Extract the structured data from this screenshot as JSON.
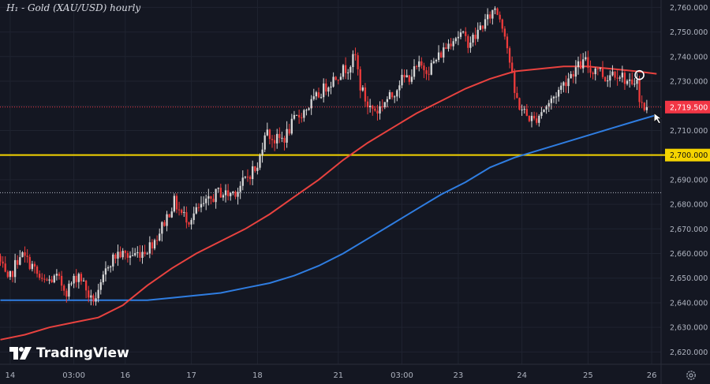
{
  "title": "H₁ - Gold (XAU/USD) hourly",
  "brand": {
    "name": "TradingView",
    "logo_icon": "tradingview-logo-icon"
  },
  "settings_icon": "gear-icon",
  "colors": {
    "background": "#141722",
    "up": "#d7d7d7",
    "down": "#ef3b3b",
    "ma_fast": "#e8423f",
    "ma_slow": "#2f7de1",
    "support": "#f5d400",
    "current_price_label": "#f23645"
  },
  "chart_data": {
    "type": "candlestick",
    "title": "H₁ - Gold (XAU/USD) hourly",
    "timeframe": "hourly",
    "ylim": [
      2615,
      2763
    ],
    "y_ticks": [
      2620,
      2630,
      2640,
      2650,
      2660,
      2670,
      2680,
      2690,
      2700,
      2710,
      2720,
      2730,
      2740,
      2750,
      2760
    ],
    "y_tick_labels": [
      "2,620.000",
      "2,630.000",
      "2,640.000",
      "2,650.000",
      "2,660.000",
      "2,670.000",
      "2,680.000",
      "2,690.000",
      "2,700.000",
      "2,710.000",
      "2,720.000",
      "2,730.000",
      "2,740.000",
      "2,750.000",
      "2,760.000"
    ],
    "x_ticks": [
      {
        "label": "14",
        "bar": 4
      },
      {
        "label": "03:00",
        "bar": 30
      },
      {
        "label": "16",
        "bar": 51
      },
      {
        "label": "17",
        "bar": 78
      },
      {
        "label": "18",
        "bar": 105
      },
      {
        "label": "21",
        "bar": 138
      },
      {
        "label": "03:00",
        "bar": 164
      },
      {
        "label": "23",
        "bar": 187
      },
      {
        "label": "24",
        "bar": 213
      },
      {
        "label": "25",
        "bar": 240
      },
      {
        "label": "26",
        "bar": 266
      }
    ],
    "bar_count": 270,
    "current_price": 2719.5,
    "current_price_label": "2,719.500",
    "support_level": 2700.0,
    "support_label": "2,700.000",
    "dotted_level": 2684.7,
    "grid": true,
    "anchors": [
      [
        0,
        2659
      ],
      [
        4,
        2648
      ],
      [
        9,
        2660
      ],
      [
        14,
        2655
      ],
      [
        18,
        2648
      ],
      [
        24,
        2650
      ],
      [
        28,
        2645
      ],
      [
        33,
        2652
      ],
      [
        38,
        2641
      ],
      [
        41,
        2643
      ],
      [
        45,
        2656
      ],
      [
        49,
        2660
      ],
      [
        53,
        2659
      ],
      [
        57,
        2660
      ],
      [
        61,
        2662
      ],
      [
        65,
        2667
      ],
      [
        69,
        2675
      ],
      [
        72,
        2681
      ],
      [
        75,
        2676
      ],
      [
        78,
        2674
      ],
      [
        82,
        2678
      ],
      [
        86,
        2681
      ],
      [
        90,
        2685
      ],
      [
        94,
        2684
      ],
      [
        98,
        2686
      ],
      [
        101,
        2690
      ],
      [
        104,
        2694
      ],
      [
        106,
        2694
      ],
      [
        109,
        2710
      ],
      [
        113,
        2706
      ],
      [
        117,
        2707
      ],
      [
        121,
        2714
      ],
      [
        125,
        2718
      ],
      [
        129,
        2722
      ],
      [
        134,
        2728
      ],
      [
        139,
        2733
      ],
      [
        143,
        2736
      ],
      [
        146,
        2740
      ],
      [
        148,
        2728
      ],
      [
        151,
        2720
      ],
      [
        155,
        2718
      ],
      [
        158,
        2722
      ],
      [
        161,
        2724
      ],
      [
        164,
        2730
      ],
      [
        168,
        2732
      ],
      [
        172,
        2736
      ],
      [
        176,
        2735
      ],
      [
        180,
        2740
      ],
      [
        183,
        2744
      ],
      [
        186,
        2748
      ],
      [
        189,
        2749
      ],
      [
        192,
        2746
      ],
      [
        195,
        2748
      ],
      [
        197,
        2752
      ],
      [
        200,
        2755
      ],
      [
        203,
        2760
      ],
      [
        205,
        2756
      ],
      [
        207,
        2750
      ],
      [
        209,
        2738
      ],
      [
        211,
        2725
      ],
      [
        213,
        2720
      ],
      [
        216,
        2716
      ],
      [
        219,
        2714
      ],
      [
        222,
        2718
      ],
      [
        225,
        2721
      ],
      [
        228,
        2725
      ],
      [
        231,
        2729
      ],
      [
        234,
        2733
      ],
      [
        237,
        2736
      ],
      [
        240,
        2738
      ],
      [
        242,
        2734
      ],
      [
        245,
        2736
      ],
      [
        248,
        2731
      ],
      [
        251,
        2734
      ],
      [
        254,
        2733
      ],
      [
        257,
        2730
      ],
      [
        259,
        2727
      ],
      [
        261,
        2733
      ],
      [
        262,
        2721
      ],
      [
        264,
        2719.5
      ]
    ],
    "ma_fast_points": [
      [
        0,
        2625
      ],
      [
        10,
        2627
      ],
      [
        20,
        2630
      ],
      [
        30,
        2632
      ],
      [
        40,
        2634
      ],
      [
        50,
        2639
      ],
      [
        60,
        2647
      ],
      [
        70,
        2654
      ],
      [
        80,
        2660
      ],
      [
        90,
        2665
      ],
      [
        100,
        2670
      ],
      [
        110,
        2676
      ],
      [
        120,
        2683
      ],
      [
        130,
        2690
      ],
      [
        140,
        2698
      ],
      [
        150,
        2705
      ],
      [
        160,
        2711
      ],
      [
        170,
        2717
      ],
      [
        180,
        2722
      ],
      [
        190,
        2727
      ],
      [
        200,
        2731
      ],
      [
        210,
        2734
      ],
      [
        220,
        2735
      ],
      [
        230,
        2736
      ],
      [
        240,
        2736
      ],
      [
        250,
        2735
      ],
      [
        260,
        2734
      ],
      [
        268,
        2733
      ]
    ],
    "ma_slow_points": [
      [
        0,
        2641
      ],
      [
        20,
        2641
      ],
      [
        40,
        2641
      ],
      [
        50,
        2641
      ],
      [
        60,
        2641
      ],
      [
        70,
        2642
      ],
      [
        80,
        2643
      ],
      [
        90,
        2644
      ],
      [
        100,
        2646
      ],
      [
        110,
        2648
      ],
      [
        120,
        2651
      ],
      [
        130,
        2655
      ],
      [
        140,
        2660
      ],
      [
        150,
        2666
      ],
      [
        160,
        2672
      ],
      [
        170,
        2678
      ],
      [
        180,
        2684
      ],
      [
        190,
        2689
      ],
      [
        200,
        2695
      ],
      [
        210,
        2699
      ],
      [
        220,
        2702
      ],
      [
        230,
        2705
      ],
      [
        240,
        2708
      ],
      [
        250,
        2711
      ],
      [
        260,
        2714
      ],
      [
        267,
        2716
      ]
    ],
    "annotations": [
      {
        "type": "circle",
        "bar": 261,
        "price": 2732.5
      },
      {
        "type": "cursor",
        "bar": 267,
        "price": 2717
      }
    ]
  }
}
